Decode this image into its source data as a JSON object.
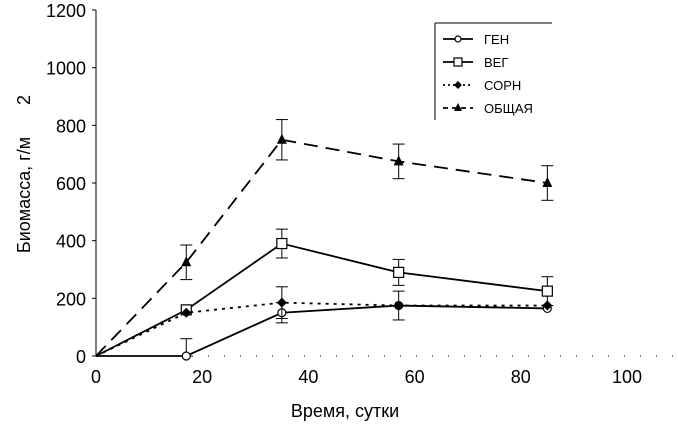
{
  "chart_data": {
    "type": "line",
    "xlabel": "Время, сутки",
    "ylabel": "Биомасса, г/м",
    "ylabel_superscript": "2",
    "xlim": [
      0,
      100
    ],
    "ylim": [
      0,
      1200
    ],
    "xticks": [
      "0",
      "20",
      "40",
      "60",
      "80",
      "100"
    ],
    "yticks": [
      "0",
      "200",
      "400",
      "600",
      "800",
      "1000",
      "1200"
    ],
    "grid": false,
    "legend_position": "top-right",
    "series": [
      {
        "name": "ГЕН",
        "marker": "open-circle",
        "line": "solid",
        "x": [
          0,
          17,
          35,
          57,
          85
        ],
        "y": [
          0,
          0,
          150,
          175,
          165
        ],
        "err": [
          0,
          60,
          35,
          0,
          0
        ]
      },
      {
        "name": "ВЕГ",
        "marker": "open-square",
        "line": "solid",
        "x": [
          0,
          17,
          35,
          57,
          85
        ],
        "y": [
          0,
          160,
          390,
          290,
          225
        ],
        "err": [
          0,
          0,
          50,
          45,
          50
        ]
      },
      {
        "name": "СОРН",
        "marker": "filled-diamond",
        "line": "dotted",
        "x": [
          0,
          17,
          35,
          57,
          85
        ],
        "y": [
          0,
          150,
          185,
          175,
          175
        ],
        "err": [
          0,
          0,
          55,
          50,
          0
        ]
      },
      {
        "name": "ОБЩАЯ",
        "marker": "filled-triangle",
        "line": "dashed",
        "x": [
          0,
          17,
          35,
          57,
          85
        ],
        "y": [
          0,
          325,
          750,
          675,
          600
        ],
        "err": [
          0,
          60,
          70,
          60,
          60
        ]
      }
    ]
  }
}
